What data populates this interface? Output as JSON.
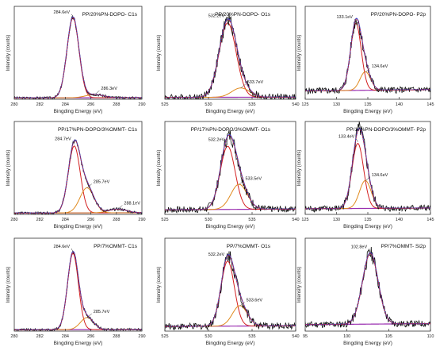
{
  "chart_data": [
    {
      "type": "line",
      "title": "PP/20%PN-DOPO- C1s",
      "xlabel": "Bingding Energy (eV)",
      "ylabel": "Intensity (counts)",
      "xlim": [
        280,
        290
      ],
      "xticks": [
        280,
        282,
        284,
        286,
        288,
        290
      ],
      "annotations": [
        {
          "text": "284.6eV",
          "x": 284.6
        },
        {
          "text": "286.3eV",
          "x": 286.3
        }
      ],
      "peaks": [
        {
          "center": 284.6,
          "height": 0.86,
          "fwhm": 1.1
        },
        {
          "center": 286.3,
          "height": 0.035,
          "fwhm": 1.6
        }
      ],
      "baseline": 0.015
    },
    {
      "type": "line",
      "title": "PP/20%PN-DOPO- O1s",
      "xlabel": "Bingding Energy (eV)",
      "ylabel": "Intensity (counts)",
      "xlim": [
        525,
        540
      ],
      "xticks": [
        525,
        530,
        535,
        540
      ],
      "annotations": [
        {
          "text": "532.2eV",
          "x": 532.2
        },
        {
          "text": "533.7eV",
          "x": 533.7
        }
      ],
      "peaks": [
        {
          "center": 532.2,
          "height": 0.8,
          "fwhm": 2.3
        },
        {
          "center": 533.7,
          "height": 0.1,
          "fwhm": 2.4
        }
      ],
      "baseline": 0.02
    },
    {
      "type": "line",
      "title": "PP/20%PN-DOPO- P2p",
      "xlabel": "Bingding Energy (eV)",
      "ylabel": "Intensity (counts)",
      "xlim": [
        125,
        145
      ],
      "xticks": [
        125,
        130,
        135,
        140,
        145
      ],
      "annotations": [
        {
          "text": "133.1eV",
          "x": 133.1
        },
        {
          "text": "134.6eV",
          "x": 134.6
        }
      ],
      "peaks": [
        {
          "center": 133.1,
          "height": 0.72,
          "fwhm": 2.0
        },
        {
          "center": 134.6,
          "height": 0.2,
          "fwhm": 2.0
        }
      ],
      "baseline": 0.09
    },
    {
      "type": "line",
      "title": "PP/17%PN-DOPO/3%OMMT- C1s",
      "xlabel": "Bingding Energy (eV)",
      "ylabel": "Intensity (counts)",
      "xlim": [
        280,
        290
      ],
      "xticks": [
        280,
        282,
        284,
        286,
        288,
        290
      ],
      "annotations": [
        {
          "text": "284.7eV",
          "x": 284.7
        },
        {
          "text": "285.7eV",
          "x": 285.7
        },
        {
          "text": "288.1eV",
          "x": 288.1
        }
      ],
      "peaks": [
        {
          "center": 284.7,
          "height": 0.72,
          "fwhm": 1.1
        },
        {
          "center": 285.7,
          "height": 0.27,
          "fwhm": 1.3
        },
        {
          "center": 288.1,
          "height": 0.04,
          "fwhm": 1.6
        }
      ],
      "baseline": 0.015
    },
    {
      "type": "line",
      "title": "PP/17%PN-DOPO/3%OMMT- O1s",
      "xlabel": "Bingding Energy (eV)",
      "ylabel": "Intensity (counts)",
      "xlim": [
        525,
        540
      ],
      "xticks": [
        525,
        530,
        535,
        540
      ],
      "annotations": [
        {
          "text": "532.2eV",
          "x": 532.2
        },
        {
          "text": "533.5eV",
          "x": 533.5
        }
      ],
      "peaks": [
        {
          "center": 532.2,
          "height": 0.68,
          "fwhm": 2.0
        },
        {
          "center": 533.5,
          "height": 0.27,
          "fwhm": 2.2
        }
      ],
      "baseline": 0.05
    },
    {
      "type": "line",
      "title": "PP/17%PN-DOPO/3%OMMT- P2p",
      "xlabel": "Bingding Energy (eV)",
      "ylabel": "Intensity (counts)",
      "xlim": [
        125,
        145
      ],
      "xticks": [
        125,
        130,
        135,
        140,
        145
      ],
      "annotations": [
        {
          "text": "133.4eV",
          "x": 133.4
        },
        {
          "text": "134.6eV",
          "x": 134.6
        }
      ],
      "peaks": [
        {
          "center": 133.4,
          "height": 0.7,
          "fwhm": 2.2
        },
        {
          "center": 134.6,
          "height": 0.3,
          "fwhm": 2.2
        }
      ],
      "baseline": 0.06
    },
    {
      "type": "line",
      "title": "PP/7%OMMT- C1s",
      "xlabel": "Bingding Energy (eV)",
      "ylabel": "Intensity (counts)",
      "xlim": [
        280,
        290
      ],
      "xticks": [
        280,
        282,
        284,
        286,
        288,
        290
      ],
      "annotations": [
        {
          "text": "284.6eV",
          "x": 284.6
        },
        {
          "text": "285.7eV",
          "x": 285.7
        }
      ],
      "peaks": [
        {
          "center": 284.6,
          "height": 0.82,
          "fwhm": 1.0
        },
        {
          "center": 285.7,
          "height": 0.13,
          "fwhm": 1.2
        }
      ],
      "baseline": 0.015
    },
    {
      "type": "line",
      "title": "PP/7%OMMT- O1s",
      "xlabel": "Bingding Energy (eV)",
      "ylabel": "Intensity (counts)",
      "xlim": [
        525,
        540
      ],
      "xticks": [
        525,
        530,
        535,
        540
      ],
      "annotations": [
        {
          "text": "532.2eV",
          "x": 532.2
        },
        {
          "text": "533.6eV",
          "x": 533.6
        }
      ],
      "peaks": [
        {
          "center": 532.2,
          "height": 0.7,
          "fwhm": 1.8
        },
        {
          "center": 533.6,
          "height": 0.22,
          "fwhm": 2.0
        }
      ],
      "baseline": 0.05
    },
    {
      "type": "line",
      "title": "PP/7%OMMT- Si2p",
      "xlabel": "Bingding Energy (eV)",
      "ylabel": "Intensity (counts)",
      "xlim": [
        95,
        110
      ],
      "xticks": [
        95,
        100,
        105,
        110
      ],
      "annotations": [
        {
          "text": "102.8eV",
          "x": 102.8
        }
      ],
      "peaks": [
        {
          "center": 102.8,
          "height": 0.76,
          "fwhm": 2.2
        }
      ],
      "baseline": 0.07
    }
  ],
  "colors": {
    "raw": "#111111",
    "envelope": "#d32020",
    "fit": "#3b3fc8",
    "component": "#e08a1e",
    "background": "#9a2fb0",
    "axis": "#333333"
  }
}
